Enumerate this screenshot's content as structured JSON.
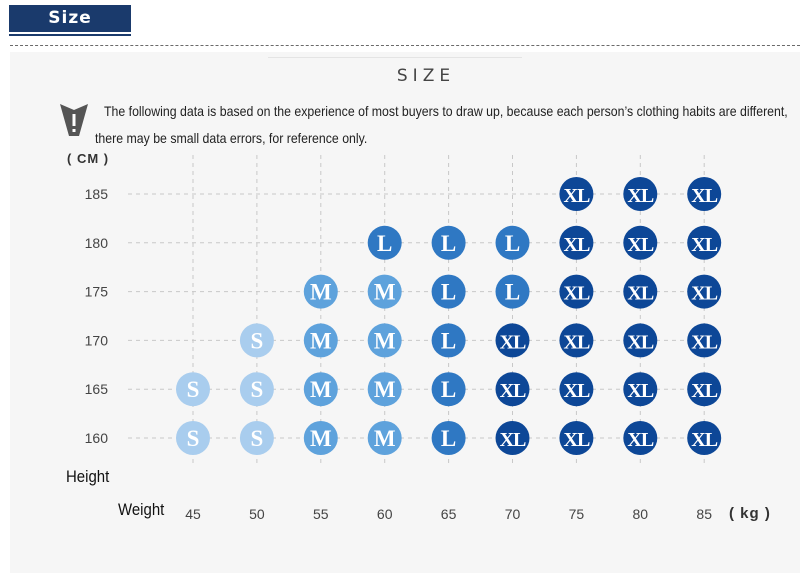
{
  "header": {
    "tab_label": "Size"
  },
  "note": {
    "line1": "The following data is based on the experience of most buyers to draw up, because each person’s clothing habits are different,",
    "line2": "there may be small data errors, for reference only."
  },
  "colors": {
    "S": "#a9cdee",
    "M": "#5ea2dc",
    "L": "#2f78c3",
    "XL": "#0d4797",
    "tab": "#1a3a6c",
    "grid": "#c8c8c8"
  },
  "chart_data": {
    "type": "scatter",
    "title": "SIZE",
    "xlabel": "Weight",
    "ylabel": "Height",
    "x_unit": "( kg )",
    "y_unit": "( CM )",
    "x_ticks": [
      45,
      50,
      55,
      60,
      65,
      70,
      75,
      80,
      85
    ],
    "y_ticks": [
      160,
      165,
      170,
      175,
      180,
      185
    ],
    "grid": "dashed",
    "size_map": {
      "185": [
        "",
        "",
        "",
        "",
        "",
        "",
        "XL",
        "XL",
        "XL"
      ],
      "180": [
        "",
        "",
        "",
        "L",
        "L",
        "L",
        "XL",
        "XL",
        "XL"
      ],
      "175": [
        "",
        "",
        "M",
        "M",
        "L",
        "L",
        "XL",
        "XL",
        "XL"
      ],
      "170": [
        "",
        "S",
        "M",
        "M",
        "L",
        "XL",
        "XL",
        "XL",
        "XL"
      ],
      "165": [
        "S",
        "S",
        "M",
        "M",
        "L",
        "XL",
        "XL",
        "XL",
        "XL"
      ],
      "160": [
        "S",
        "S",
        "M",
        "M",
        "L",
        "XL",
        "XL",
        "XL",
        "XL"
      ]
    }
  }
}
